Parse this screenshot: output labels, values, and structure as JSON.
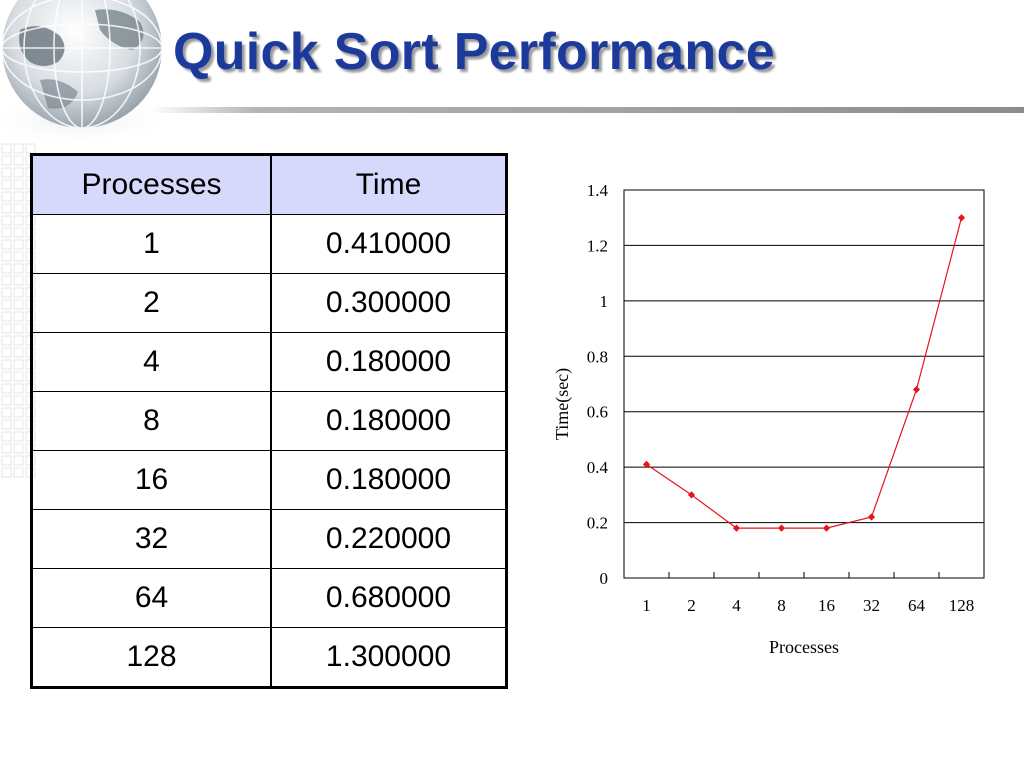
{
  "slide": {
    "title": "Quick Sort Performance"
  },
  "table": {
    "headers": [
      "Processes",
      "Time"
    ],
    "rows": [
      [
        "1",
        "0.410000"
      ],
      [
        "2",
        "0.300000"
      ],
      [
        "4",
        "0.180000"
      ],
      [
        "8",
        "0.180000"
      ],
      [
        "16",
        "0.180000"
      ],
      [
        "32",
        "0.220000"
      ],
      [
        "64",
        "0.680000"
      ],
      [
        "128",
        "1.300000"
      ]
    ],
    "header_bg": "#d6d9fb"
  },
  "chart_data": {
    "type": "line",
    "categories": [
      "1",
      "2",
      "4",
      "8",
      "16",
      "32",
      "64",
      "128"
    ],
    "series": [
      {
        "values": [
          0.41,
          0.3,
          0.18,
          0.18,
          0.18,
          0.22,
          0.68,
          1.3
        ],
        "color": "#e8141b"
      }
    ],
    "xlabel": "Processes",
    "ylabel": "Time(sec)",
    "ylim": [
      0,
      1.4
    ],
    "yticks": [
      "0",
      "0.2",
      "0.4",
      "0.6",
      "0.8",
      "1",
      "1.2",
      "1.4"
    ],
    "grid": "horizontal",
    "legend": "none"
  },
  "colors": {
    "title": "#1c3a9c",
    "line": "#e8141b"
  },
  "decor": {
    "top_left_image": "globe-icon",
    "background_pattern": "grid-pattern"
  }
}
